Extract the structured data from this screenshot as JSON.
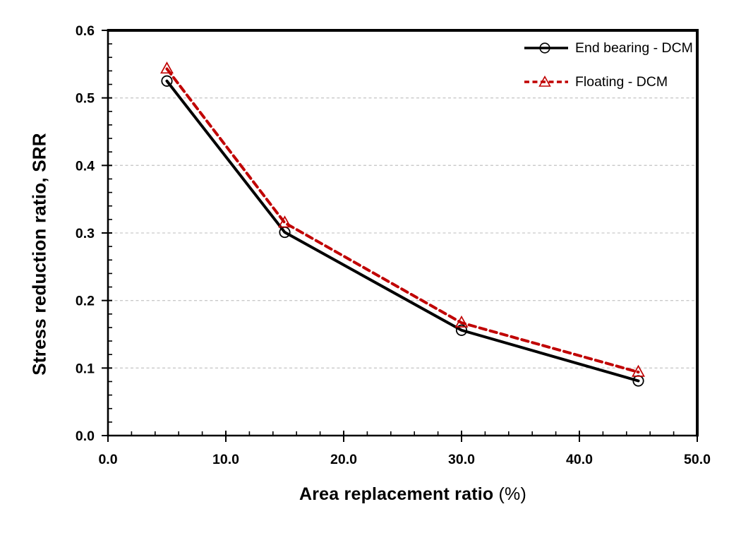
{
  "figure": {
    "background": "#ffffff"
  },
  "chart_data": {
    "type": "line",
    "title": "",
    "xlabel": "Area replacement ratio",
    "xlabel_unit": "(%)",
    "ylabel": "Stress reduction ratio, SRR",
    "xlim": [
      0.0,
      50.0
    ],
    "ylim": [
      0.0,
      0.6
    ],
    "xticks": [
      0,
      10,
      20,
      30,
      40,
      50
    ],
    "xtick_labels": [
      "0.0",
      "10.0",
      "20.0",
      "30.0",
      "40.0",
      "50.0"
    ],
    "yticks": [
      0,
      0.1,
      0.2,
      0.3,
      0.4,
      0.5,
      0.6
    ],
    "ytick_labels": [
      "0.0",
      "0.1",
      "0.2",
      "0.3",
      "0.4",
      "0.5",
      "0.6"
    ],
    "x_minor_tick_step": 2,
    "y_minor_tick_step": 0.02,
    "grid": {
      "horizontal": true,
      "vertical": false,
      "style": "dashed",
      "color": "#c9c9c9"
    },
    "axis_color": "#000000",
    "x": [
      5,
      15,
      30,
      45
    ],
    "series": [
      {
        "name": "End bearing - DCM",
        "color": "#000000",
        "line_style": "solid",
        "marker": "circle",
        "values": [
          0.525,
          0.301,
          0.156,
          0.081
        ]
      },
      {
        "name": "Floating - DCM",
        "color": "#c00000",
        "line_style": "dashed",
        "marker": "triangle",
        "values": [
          0.543,
          0.315,
          0.167,
          0.094
        ]
      }
    ],
    "legend": {
      "position": "top-right-inside",
      "frame": false
    }
  }
}
